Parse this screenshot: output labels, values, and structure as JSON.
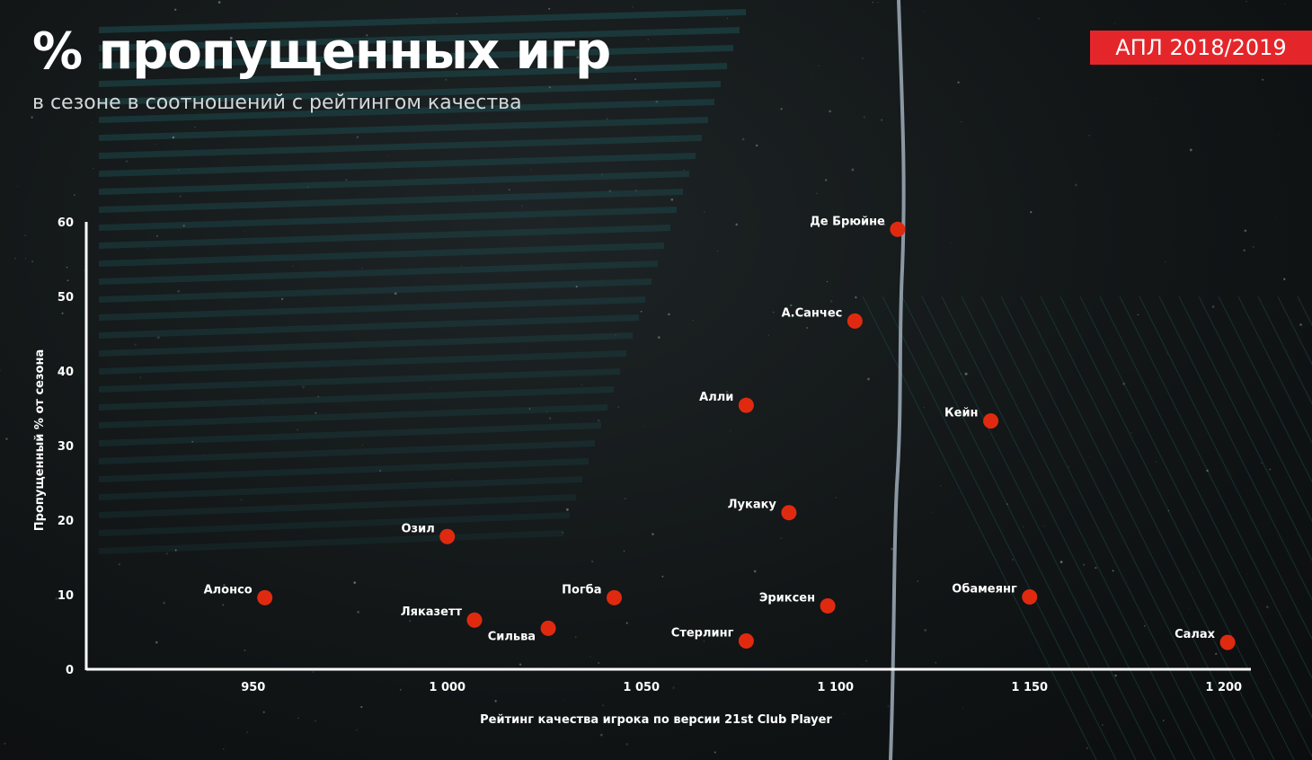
{
  "header": {
    "title": "% пропущенных игр",
    "subtitle": "в сезоне в соотношений с рейтингом качества",
    "badge": "АПЛ 2018/2019"
  },
  "colors": {
    "point": "#e02a10",
    "badge": "#e4262b",
    "axis": "#ffffff",
    "stripe": "#1d4f52"
  },
  "chart_data": {
    "type": "scatter",
    "xlabel": "Рейтинг качества игрока по версии 21st Club Player",
    "ylabel": "Пропущенный % от сезона",
    "xlim": [
      907,
      1207
    ],
    "ylim": [
      0,
      60
    ],
    "xticks": [
      950,
      1000,
      1050,
      1100,
      1150,
      1200
    ],
    "xtick_labels": [
      "950",
      "1 000",
      "1 050",
      "1 100",
      "1 150",
      "1 200"
    ],
    "yticks": [
      0,
      10,
      20,
      30,
      40,
      50,
      60
    ],
    "yticks_labels": [
      "0",
      "10",
      "20",
      "30",
      "40",
      "50",
      "60"
    ],
    "grid": false,
    "points": [
      {
        "label": "Де Брюйне",
        "x": 1116,
        "y": 59,
        "label_pos": "upper-left"
      },
      {
        "label": "А.Санчес",
        "x": 1105,
        "y": 46.7,
        "label_pos": "upper-left"
      },
      {
        "label": "Алли",
        "x": 1077,
        "y": 35.4,
        "label_pos": "upper-left"
      },
      {
        "label": "Кейн",
        "x": 1140,
        "y": 33.3,
        "label_pos": "upper-left"
      },
      {
        "label": "Лукаку",
        "x": 1088,
        "y": 21,
        "label_pos": "upper-left"
      },
      {
        "label": "Озил",
        "x": 1000,
        "y": 17.8,
        "label_pos": "upper-left"
      },
      {
        "label": "Алонсо",
        "x": 953,
        "y": 9.6,
        "label_pos": "upper-left"
      },
      {
        "label": "Погба",
        "x": 1043,
        "y": 9.6,
        "label_pos": "upper-left"
      },
      {
        "label": "Эриксен",
        "x": 1098,
        "y": 8.5,
        "label_pos": "upper-left"
      },
      {
        "label": "Обамеянг",
        "x": 1150,
        "y": 9.7,
        "label_pos": "upper-left"
      },
      {
        "label": "Ляказетт",
        "x": 1007,
        "y": 6.6,
        "label_pos": "upper-left"
      },
      {
        "label": "Сильва",
        "x": 1026,
        "y": 5.5,
        "label_pos": "lower-left"
      },
      {
        "label": "Стерлинг",
        "x": 1077,
        "y": 3.8,
        "label_pos": "upper-left"
      },
      {
        "label": "Салах",
        "x": 1201,
        "y": 3.6,
        "label_pos": "upper-left"
      }
    ]
  }
}
